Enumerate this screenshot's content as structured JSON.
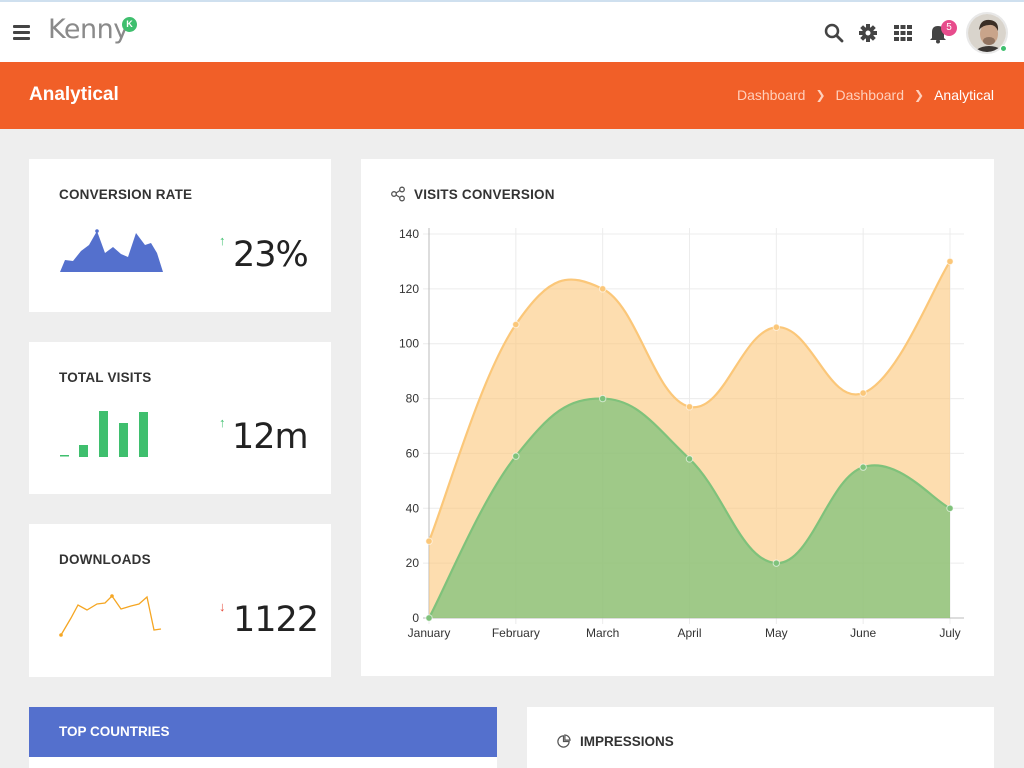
{
  "header": {
    "logo_text": "Kenny",
    "logo_badge": "K",
    "notification_count": "5"
  },
  "page": {
    "title": "Analytical",
    "breadcrumbs": [
      "Dashboard",
      "Dashboard",
      "Analytical"
    ]
  },
  "stats": {
    "conversion": {
      "title": "CONVERSION RATE",
      "value": "23%",
      "trend": "up",
      "color": "#5470cd"
    },
    "visits": {
      "title": "TOTAL VISITS",
      "value": "12m",
      "trend": "up",
      "color": "#3fbf6e"
    },
    "downloads": {
      "title": "DOWNLOADS",
      "value": "1122",
      "trend": "down",
      "color": "#f5a623"
    }
  },
  "colors": {
    "accent": "#f15f28",
    "trend_up": "#3fbf6e",
    "trend_down": "#e74c3c",
    "countries_header": "#5470cd"
  },
  "visits_chart": {
    "title": "VISITS CONVERSION"
  },
  "chart_data": {
    "type": "area",
    "categories": [
      "January",
      "February",
      "March",
      "April",
      "May",
      "June",
      "July"
    ],
    "series": [
      {
        "values": [
          28,
          107,
          120,
          77,
          106,
          82,
          130
        ],
        "color": "#fbc779"
      },
      {
        "values": [
          0,
          59,
          80,
          58,
          20,
          55,
          40
        ],
        "color": "#7fc27b"
      }
    ],
    "ylim": [
      0,
      140
    ],
    "yticks": [
      0,
      20,
      40,
      60,
      80,
      100,
      120,
      140
    ],
    "grid": true
  },
  "bottom": {
    "countries_title": "TOP COUNTRIES",
    "impressions_title": "IMPRESSIONS"
  }
}
